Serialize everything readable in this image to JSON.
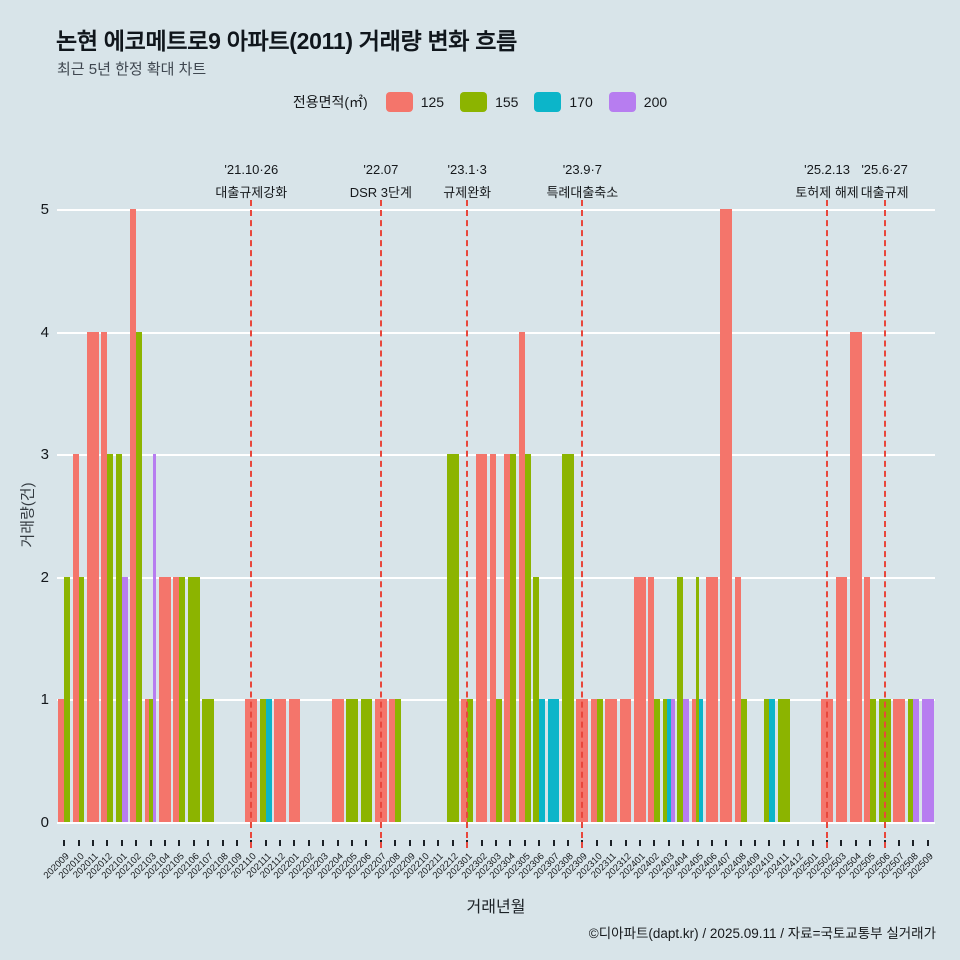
{
  "title": "논현 에코메트로9 아파트(2011) 거래량 변화 흐름",
  "subtitle": "최근 5년 한정 확대 차트",
  "footer": "©디아파트(dapt.kr) / 2025.09.11 / 자료=국토교통부 실거래가",
  "legend": {
    "label": "전용면적(㎡)",
    "items": [
      {
        "name": "125",
        "color": "#f4756b"
      },
      {
        "name": "155",
        "color": "#8cb400"
      },
      {
        "name": "170",
        "color": "#0cb5c9"
      },
      {
        "name": "200",
        "color": "#b77df0"
      }
    ]
  },
  "y_axis": {
    "label": "거래량(건)",
    "ticks": [
      0,
      1,
      2,
      3,
      4,
      5
    ],
    "max": 5
  },
  "x_axis": {
    "label": "거래년월"
  },
  "events": [
    {
      "date": "'21.10·26",
      "desc": "대출규제강화",
      "month": "202110"
    },
    {
      "date": "'22.07",
      "desc": "DSR 3단계",
      "month": "202207"
    },
    {
      "date": "'23.1·3",
      "desc": "규제완화",
      "month": "202301"
    },
    {
      "date": "'23.9·7",
      "desc": "특례대출축소",
      "month": "202309"
    },
    {
      "date": "'25.2.13",
      "desc": "토허제 해제",
      "month": "202502"
    },
    {
      "date": "'25.6·27",
      "desc": "대출규제",
      "month": "202506"
    }
  ],
  "chart_data": {
    "type": "bar",
    "title": "논현 에코메트로9 아파트(2011) 거래량 변화 흐름",
    "xlabel": "거래년월",
    "ylabel": "거래량(건)",
    "ylim": [
      0,
      5
    ],
    "grid": true,
    "legend_position": "top",
    "categories": [
      "202009",
      "202010",
      "202011",
      "202012",
      "202101",
      "202102",
      "202103",
      "202104",
      "202105",
      "202106",
      "202107",
      "202108",
      "202109",
      "202110",
      "202111",
      "202112",
      "202201",
      "202202",
      "202203",
      "202204",
      "202205",
      "202206",
      "202207",
      "202208",
      "202209",
      "202210",
      "202211",
      "202212",
      "202301",
      "202302",
      "202303",
      "202304",
      "202305",
      "202306",
      "202307",
      "202308",
      "202309",
      "202310",
      "202311",
      "202312",
      "202401",
      "202402",
      "202403",
      "202404",
      "202405",
      "202406",
      "202407",
      "202408",
      "202409",
      "202410",
      "202411",
      "202412",
      "202501",
      "202502",
      "202503",
      "202504",
      "202505",
      "202506",
      "202507",
      "202508",
      "202509"
    ],
    "series": [
      {
        "name": "125",
        "color": "#f4756b",
        "values": [
          1,
          3,
          4,
          4,
          0,
          5,
          1,
          2,
          2,
          0,
          0,
          0,
          0,
          1,
          0,
          1,
          1,
          0,
          0,
          1,
          0,
          0,
          1,
          1,
          0,
          0,
          0,
          0,
          1,
          3,
          3,
          3,
          4,
          0,
          0,
          0,
          1,
          1,
          1,
          1,
          2,
          2,
          0,
          0,
          1,
          2,
          5,
          2,
          0,
          0,
          0,
          0,
          0,
          1,
          2,
          4,
          2,
          0,
          1,
          0,
          0
        ]
      },
      {
        "name": "155",
        "color": "#8cb400",
        "values": [
          2,
          2,
          0,
          3,
          3,
          4,
          1,
          0,
          2,
          2,
          1,
          0,
          0,
          0,
          1,
          0,
          0,
          0,
          0,
          0,
          1,
          1,
          0,
          1,
          0,
          0,
          0,
          3,
          1,
          0,
          1,
          3,
          3,
          2,
          0,
          3,
          0,
          1,
          0,
          0,
          0,
          1,
          1,
          2,
          2,
          0,
          0,
          1,
          0,
          1,
          1,
          0,
          0,
          0,
          0,
          0,
          1,
          1,
          0,
          1,
          0
        ]
      },
      {
        "name": "170",
        "color": "#0cb5c9",
        "values": [
          0,
          0,
          0,
          0,
          0,
          0,
          0,
          0,
          0,
          0,
          0,
          0,
          0,
          0,
          1,
          0,
          0,
          0,
          0,
          0,
          0,
          0,
          0,
          0,
          0,
          0,
          0,
          0,
          0,
          0,
          0,
          0,
          0,
          1,
          1,
          0,
          0,
          0,
          0,
          0,
          0,
          0,
          1,
          0,
          1,
          0,
          0,
          0,
          0,
          1,
          0,
          0,
          0,
          0,
          0,
          0,
          0,
          0,
          0,
          0,
          0
        ]
      },
      {
        "name": "200",
        "color": "#b77df0",
        "values": [
          0,
          0,
          0,
          0,
          2,
          0,
          3,
          0,
          0,
          0,
          0,
          0,
          0,
          0,
          0,
          0,
          0,
          0,
          0,
          0,
          0,
          0,
          0,
          0,
          0,
          0,
          0,
          0,
          0,
          0,
          0,
          0,
          0,
          0,
          0,
          0,
          0,
          0,
          0,
          0,
          0,
          0,
          1,
          1,
          0,
          0,
          0,
          0,
          0,
          0,
          0,
          0,
          0,
          0,
          0,
          0,
          0,
          0,
          0,
          1,
          1
        ]
      }
    ]
  }
}
